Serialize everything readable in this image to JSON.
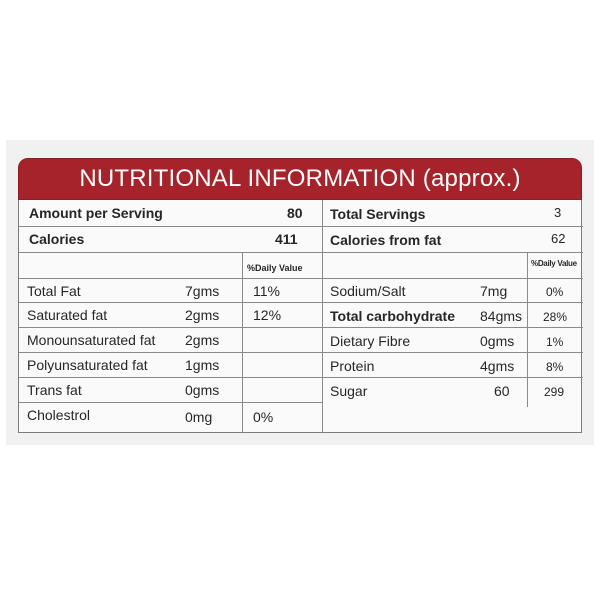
{
  "title": "NUTRITIONAL INFORMATION (approx.)",
  "summary": {
    "amount_per_serving_label": "Amount per Serving",
    "amount_per_serving_value": "80",
    "total_servings_label": "Total Servings",
    "total_servings_value": "3",
    "calories_label": "Calories",
    "calories_value": "411",
    "calories_from_fat_label": "Calories from fat",
    "calories_from_fat_value": "62"
  },
  "daily_value_header": "%Daily Value",
  "left_rows": [
    {
      "name": "Total Fat",
      "amount": "7gms",
      "dv": "11%"
    },
    {
      "name": "Saturated fat",
      "amount": "2gms",
      "dv": "12%"
    },
    {
      "name": "Monounsaturated fat",
      "amount": "2gms",
      "dv": ""
    },
    {
      "name": "Polyunsaturated fat",
      "amount": "1gms",
      "dv": ""
    },
    {
      "name": "Trans fat",
      "amount": "0gms",
      "dv": ""
    },
    {
      "name": "Cholestrol",
      "amount": "0mg",
      "dv": "0%"
    }
  ],
  "right_rows": [
    {
      "name": "Sodium/Salt",
      "amount": "7mg",
      "dv": "0%"
    },
    {
      "name": "Total carbohydrate",
      "amount": "84gms",
      "dv": "28%"
    },
    {
      "name": "Dietary Fibre",
      "amount": "0gms",
      "dv": "1%"
    },
    {
      "name": "Protein",
      "amount": "4gms",
      "dv": "8%"
    },
    {
      "name": "Sugar",
      "amount": "60",
      "dv": "299"
    }
  ],
  "colors": {
    "banner": "#a6232b",
    "banner_text": "#ffffff",
    "grid": "#8a8a8a"
  }
}
